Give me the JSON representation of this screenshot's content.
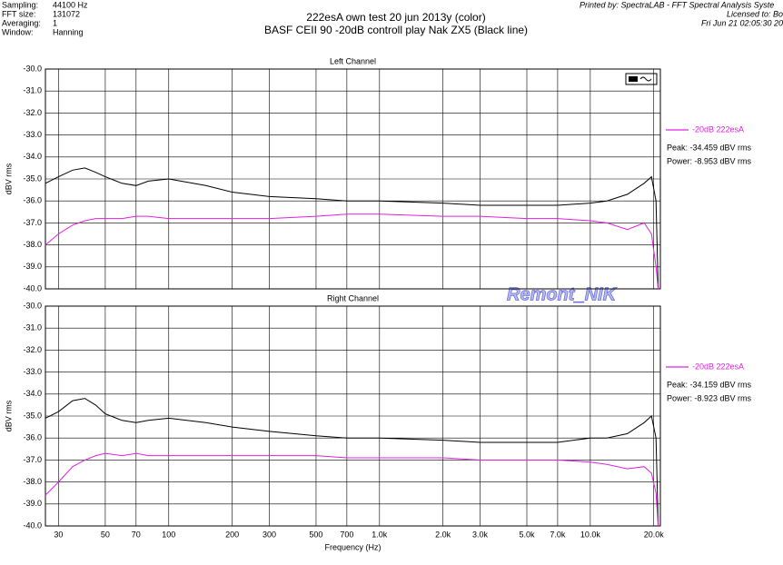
{
  "header": {
    "info": [
      [
        "Sampling:",
        "44100 Hz"
      ],
      [
        "FFT size:",
        "131072"
      ],
      [
        "Averaging:",
        "1"
      ],
      [
        "Window:",
        "Hanning"
      ]
    ],
    "title": [
      "222esA own test 20 jun 2013y (color)",
      "BASF CEII 90  -20dB controll play Nak ZX5 (Black line)"
    ],
    "printed": [
      "Printed by: SpectraLAB - FFT Spectral Analysis Syste",
      "Licensed to: Bo",
      "Fri Jun 21 02:05:30 20"
    ],
    "watermark": "Remont_NIK"
  },
  "chart_data": [
    {
      "type": "line",
      "title": "Left Channel",
      "y_label": "dBV rms",
      "xscale": "log",
      "grid": true,
      "xlim": [
        26,
        21500
      ],
      "ylim": [
        -40,
        -30
      ],
      "xticks": [
        30,
        50,
        70,
        100,
        200,
        300,
        500,
        700,
        1000,
        2000,
        3000,
        5000,
        7000,
        10000,
        20000
      ],
      "yticks": [
        {
          "value": -30,
          "label": "-30.0"
        },
        {
          "value": -31,
          "label": "-31.0"
        },
        {
          "value": -32,
          "label": "-32.0"
        },
        {
          "value": -33,
          "label": "-33.0"
        },
        {
          "value": -34,
          "label": "-34.0"
        },
        {
          "value": -35,
          "label": "-35.0"
        },
        {
          "value": -36,
          "label": "-36.0"
        },
        {
          "value": -37,
          "label": "-37.0"
        },
        {
          "value": -38,
          "label": "-38.0"
        },
        {
          "value": -39,
          "label": "-39.0"
        },
        {
          "value": -40,
          "label": "-40.0"
        }
      ],
      "x": [
        26,
        30,
        35,
        40,
        45,
        50,
        60,
        70,
        80,
        100,
        150,
        200,
        300,
        500,
        700,
        1000,
        2000,
        3000,
        5000,
        7000,
        10000,
        12000,
        15000,
        18000,
        19500,
        20500,
        21000
      ],
      "series": [
        {
          "color": "#000000",
          "values": [
            -35.2,
            -34.9,
            -34.6,
            -34.5,
            -34.7,
            -34.9,
            -35.2,
            -35.3,
            -35.1,
            -35.0,
            -35.3,
            -35.6,
            -35.8,
            -35.9,
            -36.0,
            -36.0,
            -36.1,
            -36.2,
            -36.2,
            -36.2,
            -36.1,
            -36.0,
            -35.7,
            -35.2,
            -34.9,
            -36.0,
            -40.0
          ]
        },
        {
          "name": "-20dB 222esA",
          "color": "#e020e0",
          "values": [
            -38.0,
            -37.5,
            -37.1,
            -36.9,
            -36.8,
            -36.8,
            -36.8,
            -36.7,
            -36.7,
            -36.8,
            -36.8,
            -36.8,
            -36.8,
            -36.7,
            -36.6,
            -36.6,
            -36.7,
            -36.7,
            -36.8,
            -36.8,
            -36.9,
            -37.0,
            -37.3,
            -37.0,
            -37.5,
            -39.0,
            -40.0
          ]
        }
      ],
      "annotations": [
        "Peak: -34.459 dBV rms",
        "Power: -8.953 dBV rms"
      ]
    },
    {
      "type": "line",
      "title": "Right Channel",
      "y_label": "dBV rms",
      "x_label": "Frequency (Hz)",
      "xscale": "log",
      "grid": true,
      "xlim": [
        26,
        21500
      ],
      "ylim": [
        -40,
        -30
      ],
      "xticks": [
        30,
        50,
        70,
        100,
        200,
        300,
        500,
        700,
        {
          "value": 1000,
          "label": "1.0k"
        },
        {
          "value": 2000,
          "label": "2.0k"
        },
        {
          "value": 3000,
          "label": "3.0k"
        },
        {
          "value": 5000,
          "label": "5.0k"
        },
        {
          "value": 7000,
          "label": "7.0k"
        },
        {
          "value": 10000,
          "label": "10.0k"
        },
        {
          "value": 20000,
          "label": "20.0k"
        }
      ],
      "yticks": [
        {
          "value": -30,
          "label": "-30.0"
        },
        {
          "value": -31,
          "label": "-31.0"
        },
        {
          "value": -32,
          "label": "-32.0"
        },
        {
          "value": -33,
          "label": "-33.0"
        },
        {
          "value": -34,
          "label": "-34.0"
        },
        {
          "value": -35,
          "label": "-35.0"
        },
        {
          "value": -36,
          "label": "-36.0"
        },
        {
          "value": -37,
          "label": "-37.0"
        },
        {
          "value": -38,
          "label": "-38.0"
        },
        {
          "value": -39,
          "label": "-39.0"
        },
        {
          "value": -40,
          "label": "-40.0"
        }
      ],
      "x": [
        26,
        30,
        35,
        40,
        45,
        50,
        60,
        70,
        80,
        100,
        150,
        200,
        300,
        500,
        700,
        1000,
        2000,
        3000,
        5000,
        7000,
        10000,
        12000,
        15000,
        18000,
        19500,
        20500,
        21000
      ],
      "series": [
        {
          "color": "#000000",
          "values": [
            -35.1,
            -34.8,
            -34.3,
            -34.2,
            -34.5,
            -34.9,
            -35.2,
            -35.3,
            -35.2,
            -35.1,
            -35.3,
            -35.5,
            -35.7,
            -35.9,
            -36.0,
            -36.0,
            -36.1,
            -36.2,
            -36.2,
            -36.2,
            -36.0,
            -36.0,
            -35.8,
            -35.3,
            -35.0,
            -36.0,
            -40.0
          ]
        },
        {
          "name": "-20dB 222esA",
          "color": "#e020e0",
          "values": [
            -38.6,
            -38.0,
            -37.3,
            -37.0,
            -36.8,
            -36.7,
            -36.8,
            -36.7,
            -36.8,
            -36.8,
            -36.8,
            -36.8,
            -36.8,
            -36.8,
            -36.9,
            -36.9,
            -36.9,
            -37.0,
            -37.0,
            -37.0,
            -37.1,
            -37.2,
            -37.4,
            -37.3,
            -37.6,
            -38.5,
            -40.0
          ]
        }
      ],
      "annotations": [
        "Peak: -34.159 dBV rms",
        "Power: -8.923 dBV rms"
      ]
    }
  ]
}
